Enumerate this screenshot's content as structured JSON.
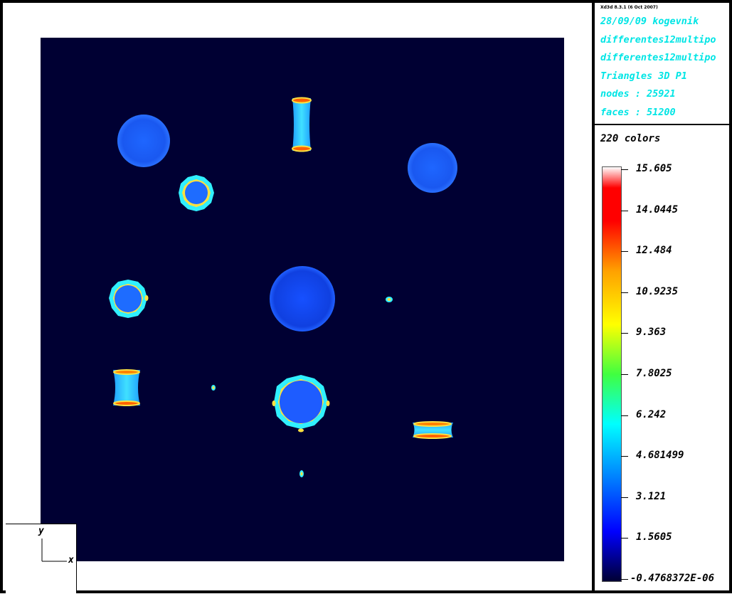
{
  "info": {
    "version": "Xd3d 8.3.1 (6 Oct 2007)",
    "date_user": "28/09/09 kogevnik",
    "file1": "differentes12multipo",
    "file2": "differentes12multipo",
    "mesh_type": "Triangles 3D P1",
    "nodes": "nodes : 25921",
    "faces": "faces : 51200"
  },
  "colorbar": {
    "colors_label": "220 colors",
    "ticks": [
      "15.605",
      "14.0445",
      "12.484",
      "10.9235",
      "9.363",
      "7.8025",
      "6.242",
      "4.681499",
      "3.121",
      "1.5605",
      "-0.4768372E-06"
    ],
    "palette": [
      "#000033",
      "#0000ff",
      "#0080ff",
      "#00ffff",
      "#40ff40",
      "#ffff00",
      "#ffa000",
      "#ff0000",
      "#ffffff"
    ]
  },
  "axes": {
    "y_label": "y",
    "x_label": "x"
  },
  "scene": {
    "background_color": "#000033",
    "shape_color": "#1a5cff"
  }
}
